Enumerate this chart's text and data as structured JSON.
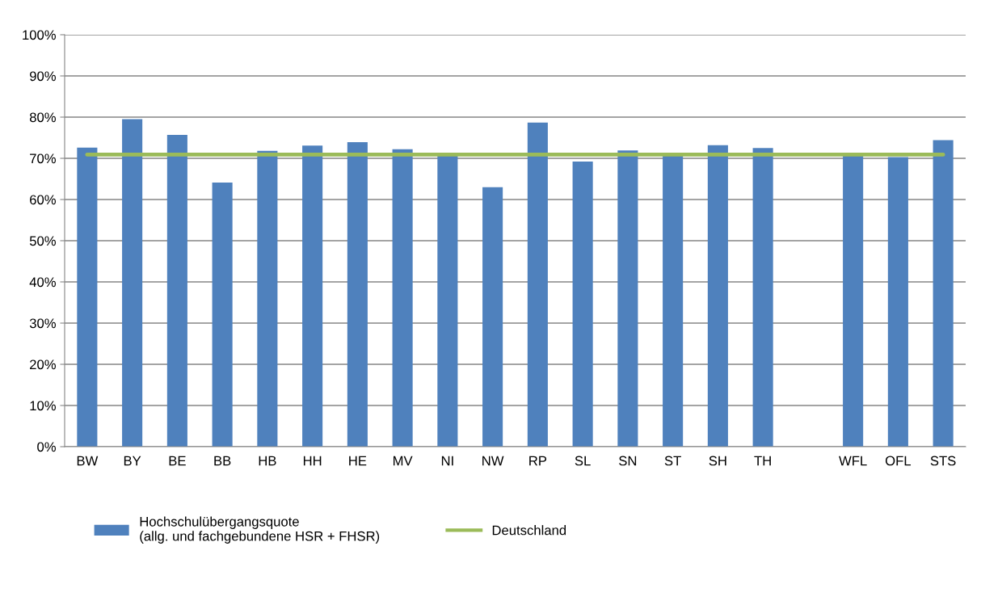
{
  "chart_data": {
    "type": "bar",
    "categories": [
      "BW",
      "BY",
      "BE",
      "BB",
      "HB",
      "HH",
      "HE",
      "MV",
      "NI",
      "NW",
      "RP",
      "SL",
      "SN",
      "ST",
      "SH",
      "TH",
      null,
      "WFL",
      "OFL",
      "STS"
    ],
    "series": [
      {
        "name": "Hochschulübergangsquote\n(allg. und fachgebundene HSR + FHSR)",
        "color": "#4f81bd",
        "values": [
          72.6,
          79.5,
          75.7,
          64.1,
          71.8,
          73.1,
          73.9,
          72.2,
          70.8,
          63.0,
          78.7,
          69.2,
          71.9,
          70.8,
          73.2,
          72.5,
          null,
          70.7,
          70.3,
          74.4
        ]
      },
      {
        "name": "Deutschland",
        "type": "line",
        "color": "#9bbb59",
        "values": [
          70.9,
          70.9,
          70.9,
          70.9,
          70.9,
          70.9,
          70.9,
          70.9,
          70.9,
          70.9,
          70.9,
          70.9,
          70.9,
          70.9,
          70.9,
          70.9,
          70.9,
          70.9,
          70.9,
          70.9
        ]
      }
    ],
    "ylim": [
      0,
      100
    ],
    "yticks": [
      {
        "value": 0,
        "label": "0%"
      },
      {
        "value": 10,
        "label": "10%"
      },
      {
        "value": 20,
        "label": "20%"
      },
      {
        "value": 30,
        "label": "30%"
      },
      {
        "value": 40,
        "label": "40%"
      },
      {
        "value": 50,
        "label": "50%"
      },
      {
        "value": 60,
        "label": "60%"
      },
      {
        "value": 70,
        "label": "70%"
      },
      {
        "value": 80,
        "label": "80%"
      },
      {
        "value": 90,
        "label": "90%"
      },
      {
        "value": 100,
        "label": "100%"
      }
    ],
    "grid": "y",
    "legend": "bottom"
  }
}
